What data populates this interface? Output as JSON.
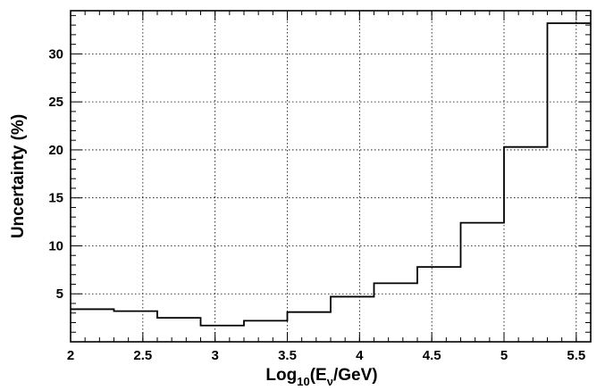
{
  "chart_data": {
    "type": "line",
    "style": "step-histogram",
    "bin_edges": [
      2.0,
      2.3,
      2.6,
      2.9,
      3.2,
      3.5,
      3.8,
      4.1,
      4.4,
      4.7,
      5.0,
      5.3,
      5.6
    ],
    "values": [
      3.4,
      3.2,
      2.5,
      1.7,
      2.2,
      3.1,
      4.7,
      6.1,
      7.8,
      12.4,
      20.3,
      33.2
    ],
    "xlabel": {
      "base": "Log",
      "sub": "10",
      "open": "(E",
      "nu": "ν",
      "close": "/GeV)"
    },
    "ylabel": "Uncertainty (%)",
    "xlim": [
      2.0,
      5.6
    ],
    "ylim": [
      0,
      34.5
    ],
    "xticks": [
      2,
      2.5,
      3,
      3.5,
      4,
      4.5,
      5,
      5.5
    ],
    "xtick_labels": [
      "2",
      "2.5",
      "3",
      "3.5",
      "4",
      "4.5",
      "5",
      "5.5"
    ],
    "yticks": [
      5,
      10,
      15,
      20,
      25,
      30
    ],
    "ytick_labels": [
      "5",
      "10",
      "15",
      "20",
      "25",
      "30"
    ],
    "grid": true,
    "line_color": "#000000"
  }
}
